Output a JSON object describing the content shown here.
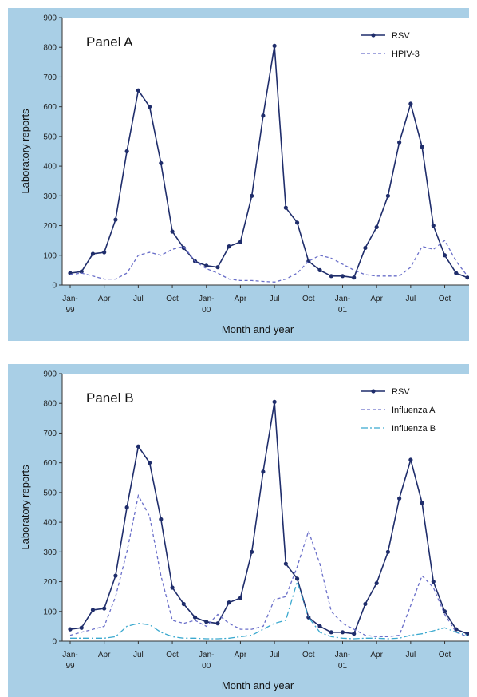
{
  "chart_data": [
    {
      "type": "line",
      "panel_label": "Panel A",
      "xlabel": "Month and year",
      "ylabel": "Laboratory reports",
      "ylim": [
        0,
        900
      ],
      "yticks": [
        "0",
        "100",
        "200",
        "300",
        "400",
        "500",
        "600",
        "700",
        "800",
        "900"
      ],
      "xticks": [
        {
          "index": 0,
          "lines": [
            "Jan-",
            "99"
          ]
        },
        {
          "index": 3,
          "lines": [
            "Apr"
          ]
        },
        {
          "index": 6,
          "lines": [
            "Jul"
          ]
        },
        {
          "index": 9,
          "lines": [
            "Oct"
          ]
        },
        {
          "index": 12,
          "lines": [
            "Jan-",
            "00"
          ]
        },
        {
          "index": 15,
          "lines": [
            "Apr"
          ]
        },
        {
          "index": 18,
          "lines": [
            "Jul"
          ]
        },
        {
          "index": 21,
          "lines": [
            "Oct"
          ]
        },
        {
          "index": 24,
          "lines": [
            "Jan-",
            "01"
          ]
        },
        {
          "index": 27,
          "lines": [
            "Apr"
          ]
        },
        {
          "index": 30,
          "lines": [
            "Jul"
          ]
        },
        {
          "index": 33,
          "lines": [
            "Oct"
          ]
        }
      ],
      "n_points": 36,
      "legend": "top-right",
      "series": [
        {
          "name": "RSV",
          "style": "solid-marker",
          "color": "#1f2d6b",
          "values": [
            40,
            45,
            105,
            110,
            220,
            450,
            655,
            600,
            410,
            180,
            125,
            80,
            65,
            60,
            130,
            145,
            300,
            570,
            805,
            260,
            210,
            80,
            50,
            30,
            30,
            25,
            125,
            195,
            300,
            480,
            610,
            465,
            200,
            100,
            40,
            25
          ]
        },
        {
          "name": "HPIV-3",
          "style": "dashed",
          "color": "#6a6fc9",
          "values": [
            35,
            40,
            30,
            20,
            20,
            40,
            100,
            110,
            100,
            120,
            130,
            80,
            55,
            40,
            20,
            15,
            15,
            12,
            10,
            20,
            40,
            80,
            100,
            90,
            70,
            50,
            35,
            30,
            30,
            30,
            60,
            130,
            120,
            150,
            80,
            30
          ]
        }
      ]
    },
    {
      "type": "line",
      "panel_label": "Panel B",
      "xlabel": "Month and year",
      "ylabel": "Laboratory reports",
      "ylim": [
        0,
        900
      ],
      "yticks": [
        "0",
        "100",
        "200",
        "300",
        "400",
        "500",
        "600",
        "700",
        "800",
        "900"
      ],
      "xticks": [
        {
          "index": 0,
          "lines": [
            "Jan-",
            "99"
          ]
        },
        {
          "index": 3,
          "lines": [
            "Apr"
          ]
        },
        {
          "index": 6,
          "lines": [
            "Jul"
          ]
        },
        {
          "index": 9,
          "lines": [
            "Oct"
          ]
        },
        {
          "index": 12,
          "lines": [
            "Jan-",
            "00"
          ]
        },
        {
          "index": 15,
          "lines": [
            "Apr"
          ]
        },
        {
          "index": 18,
          "lines": [
            "Jul"
          ]
        },
        {
          "index": 21,
          "lines": [
            "Oct"
          ]
        },
        {
          "index": 24,
          "lines": [
            "Jan-",
            "01"
          ]
        },
        {
          "index": 27,
          "lines": [
            "Apr"
          ]
        },
        {
          "index": 30,
          "lines": [
            "Jul"
          ]
        },
        {
          "index": 33,
          "lines": [
            "Oct"
          ]
        }
      ],
      "n_points": 36,
      "legend": "top-right",
      "series": [
        {
          "name": "RSV",
          "style": "solid-marker",
          "color": "#1f2d6b",
          "values": [
            40,
            45,
            105,
            110,
            220,
            450,
            655,
            600,
            410,
            180,
            125,
            80,
            65,
            60,
            130,
            145,
            300,
            570,
            805,
            260,
            210,
            80,
            50,
            30,
            30,
            25,
            125,
            195,
            300,
            480,
            610,
            465,
            200,
            100,
            40,
            25
          ]
        },
        {
          "name": "Influenza A",
          "style": "dashed",
          "color": "#6a6fc9",
          "values": [
            20,
            30,
            40,
            50,
            150,
            300,
            490,
            420,
            220,
            70,
            60,
            70,
            50,
            90,
            60,
            40,
            40,
            50,
            140,
            150,
            250,
            370,
            260,
            100,
            60,
            40,
            20,
            15,
            15,
            20,
            120,
            220,
            180,
            90,
            30,
            15
          ]
        },
        {
          "name": "Influenza B",
          "style": "dash-dot",
          "color": "#3ba9cf",
          "values": [
            10,
            10,
            10,
            10,
            15,
            50,
            60,
            55,
            30,
            15,
            10,
            10,
            8,
            8,
            10,
            15,
            20,
            40,
            60,
            70,
            200,
            80,
            30,
            15,
            10,
            8,
            10,
            10,
            8,
            10,
            20,
            25,
            35,
            45,
            30,
            20
          ]
        }
      ]
    }
  ]
}
